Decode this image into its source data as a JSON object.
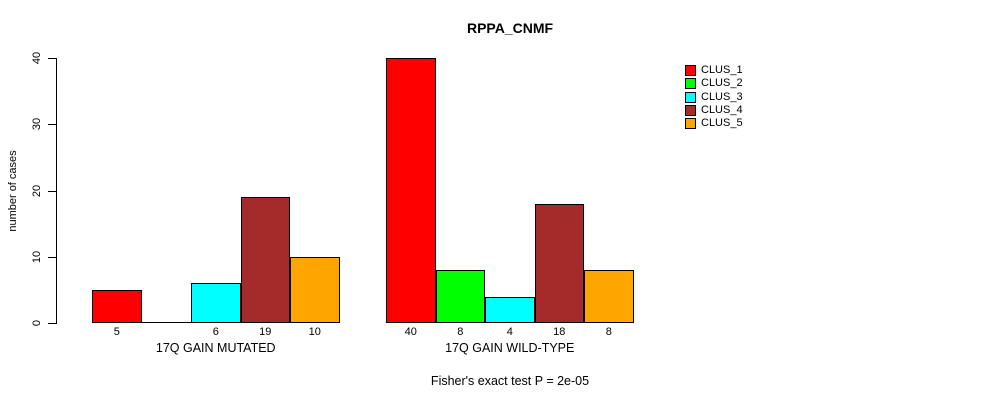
{
  "title": "RPPA_CNMF",
  "chart_data": {
    "type": "bar",
    "title": "RPPA_CNMF",
    "xlabel": "",
    "ylabel": "number of cases",
    "ylim": [
      0,
      40
    ],
    "y_ticks": [
      0,
      10,
      20,
      30,
      40
    ],
    "grid": false,
    "legend_position": "top-right",
    "categories": [
      "17Q GAIN MUTATED",
      "17Q GAIN WILD-TYPE"
    ],
    "series": [
      {
        "name": "CLUS_1",
        "color": "#FF0000",
        "values": [
          5,
          40
        ]
      },
      {
        "name": "CLUS_2",
        "color": "#00FF00",
        "values": [
          0,
          8
        ]
      },
      {
        "name": "CLUS_3",
        "color": "#00FFFF",
        "values": [
          6,
          4
        ]
      },
      {
        "name": "CLUS_4",
        "color": "#A52A2A",
        "values": [
          19,
          18
        ]
      },
      {
        "name": "CLUS_5",
        "color": "#FFA500",
        "values": [
          10,
          8
        ]
      }
    ],
    "bar_value_labels": [
      [
        "5",
        "",
        "6",
        "19",
        "10"
      ],
      [
        "40",
        "8",
        "4",
        "18",
        "8"
      ]
    ],
    "annotation": "Fisher's exact test P = 2e-05"
  }
}
